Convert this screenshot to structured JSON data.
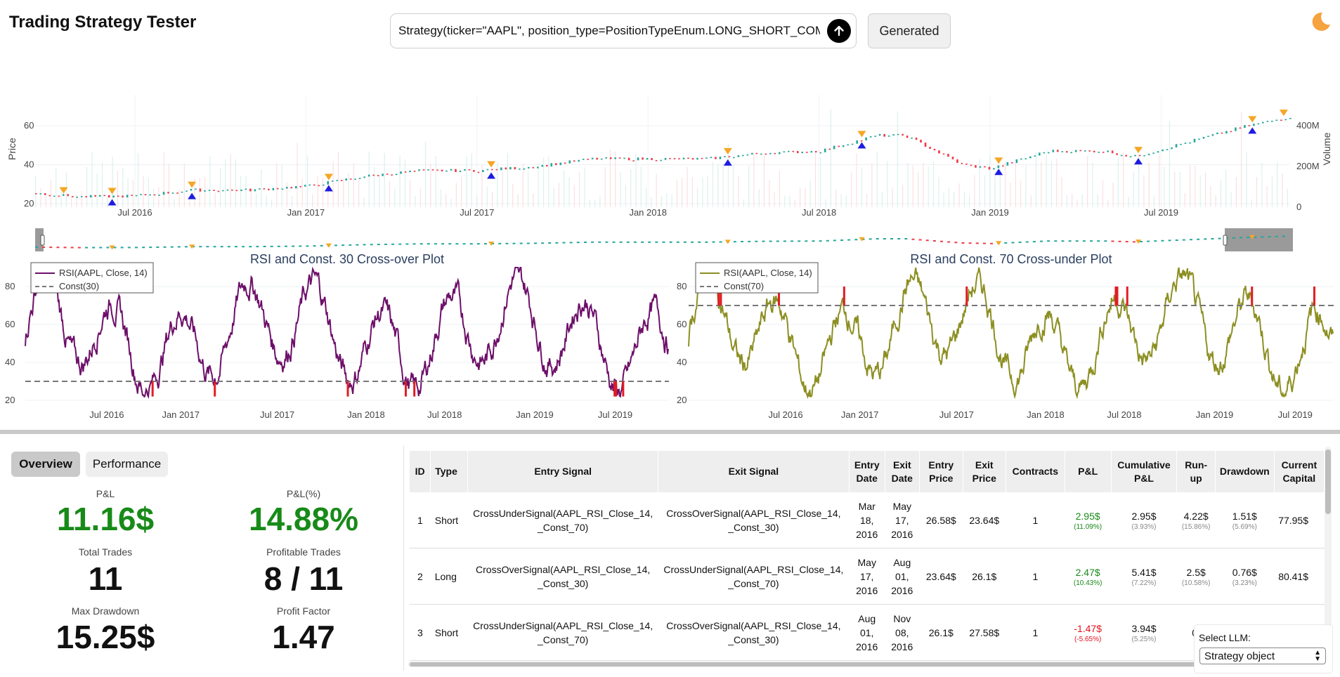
{
  "header": {
    "title": "Trading Strategy Tester",
    "prompt_value": "Strategy(ticker=\"AAPL\", position_type=PositionTypeEnum.LONG_SHORT_COMBINED",
    "generated_label": "Generated",
    "submit_icon": "arrow-up-icon",
    "theme_icon": "moon-icon"
  },
  "colors": {
    "up_candle": "#26a69a",
    "down_candle": "#ef3b48",
    "rsi_line_1": "#6d0f6a",
    "rsi_line_2": "#8c8f22",
    "signal_marker": "#e11d23",
    "entry_marker": "#f5a623",
    "exit_marker": "#1d1de0",
    "pnl_positive": "#188a18",
    "pnl_negative": "#e0141e"
  },
  "price_chart": {
    "y_label": "Price",
    "y2_label": "Volume",
    "y_ticks": [
      "20",
      "40",
      "60"
    ],
    "y2_ticks": [
      "0",
      "200M",
      "400M"
    ],
    "x_ticks": [
      "Jul 2016",
      "Jan 2017",
      "Jul 2017",
      "Jan 2018",
      "Jul 2018",
      "Jan 2019",
      "Jul 2019"
    ]
  },
  "chart_data": [
    {
      "type": "line",
      "title": "",
      "xlabel": "",
      "ylabel": "Price",
      "ylim": [
        20,
        70
      ],
      "x": [
        "2016-03",
        "2016-05",
        "2016-07",
        "2016-09",
        "2016-11",
        "2017-01",
        "2017-03",
        "2017-05",
        "2017-07",
        "2017-09",
        "2017-11",
        "2018-01",
        "2018-03",
        "2018-05",
        "2018-07",
        "2018-09",
        "2018-10",
        "2018-12",
        "2019-01",
        "2019-03",
        "2019-05",
        "2019-06",
        "2019-08",
        "2019-10",
        "2019-12"
      ],
      "series": [
        {
          "values": [
            26,
            23.5,
            24,
            27,
            27,
            29,
            34,
            37,
            37,
            39,
            43,
            43,
            43,
            46,
            47,
            55,
            55,
            40,
            38,
            47,
            47,
            44,
            52,
            60,
            66
          ]
        }
      ]
    },
    {
      "type": "line",
      "title": "RSI and Const. 30 Cross-over Plot",
      "ylim": [
        20,
        90
      ],
      "y_ticks": [
        "20",
        "40",
        "60",
        "80"
      ],
      "x_ticks": [
        "Jul 2016",
        "Jan 2017",
        "Jul 2017",
        "Jan 2018",
        "Jul 2018",
        "Jan 2019",
        "Jul 2019"
      ],
      "series": [
        {
          "name": "RSI(AAPL, Close, 14)"
        },
        {
          "name": "Const(30)",
          "values": [
            30
          ]
        }
      ]
    },
    {
      "type": "line",
      "title": "RSI and Const. 70 Cross-under Plot",
      "ylim": [
        20,
        90
      ],
      "y_ticks": [
        "20",
        "40",
        "60",
        "80"
      ],
      "x_ticks": [
        "Jul 2016",
        "Jan 2017",
        "Jul 2017",
        "Jan 2018",
        "Jul 2018",
        "Jan 2019",
        "Jul 2019"
      ],
      "series": [
        {
          "name": "RSI(AAPL, Close, 14)"
        },
        {
          "name": "Const(70)",
          "values": [
            70
          ]
        }
      ]
    }
  ],
  "tabs": [
    {
      "label": "Overview",
      "active": true
    },
    {
      "label": "Performance",
      "active": false
    }
  ],
  "stats": {
    "pnl": {
      "label": "P&L",
      "value": "11.16$"
    },
    "pnl_pct": {
      "label": "P&L(%)",
      "value": "14.88%"
    },
    "total_trades": {
      "label": "Total Trades",
      "value": "11"
    },
    "profitable_trades": {
      "label": "Profitable Trades",
      "value": "8 / 11"
    },
    "max_drawdown": {
      "label": "Max Drawdown",
      "value": "15.25$"
    },
    "profit_factor": {
      "label": "Profit Factor",
      "value": "1.47"
    }
  },
  "trades_table": {
    "columns": [
      "ID",
      "Type",
      "Entry Signal",
      "Exit Signal",
      "Entry Date",
      "Exit Date",
      "Entry Price",
      "Exit Price",
      "Contracts",
      "P&L",
      "Cumulative P&L",
      "Run-up",
      "Drawdown",
      "Current Capital"
    ],
    "rows": [
      {
        "id": "1",
        "type": "Short",
        "entry_signal": "CrossUnderSignal(AAPL_RSI_Close_14, _Const_70)",
        "exit_signal": "CrossOverSignal(AAPL_RSI_Close_14, _Const_30)",
        "entry_date": "Mar 18, 2016",
        "exit_date": "May 17, 2016",
        "entry_price": "26.58$",
        "exit_price": "23.64$",
        "contracts": "1",
        "pnl": "2.95$",
        "pnl_pct": "(11.09%)",
        "pnl_sign": "pos",
        "cum_pnl": "2.95$",
        "cum_pnl_pct": "(3.93%)",
        "runup": "4.22$",
        "runup_pct": "(15.86%)",
        "drawdown": "1.51$",
        "drawdown_pct": "(5.69%)",
        "capital": "77.95$"
      },
      {
        "id": "2",
        "type": "Long",
        "entry_signal": "CrossOverSignal(AAPL_RSI_Close_14, _Const_30)",
        "exit_signal": "CrossUnderSignal(AAPL_RSI_Close_14, _Const_70)",
        "entry_date": "May 17, 2016",
        "exit_date": "Aug 01, 2016",
        "entry_price": "23.64$",
        "exit_price": "26.1$",
        "contracts": "1",
        "pnl": "2.47$",
        "pnl_pct": "(10.43%)",
        "pnl_sign": "pos",
        "cum_pnl": "5.41$",
        "cum_pnl_pct": "(7.22%)",
        "runup": "2.5$",
        "runup_pct": "(10.58%)",
        "drawdown": "0.76$",
        "drawdown_pct": "(3.23%)",
        "capital": "80.41$"
      },
      {
        "id": "3",
        "type": "Short",
        "entry_signal": "CrossUnderSignal(AAPL_RSI_Close_14, _Const_70)",
        "exit_signal": "CrossOverSignal(AAPL_RSI_Close_14, _Const_30)",
        "entry_date": "Aug 01, 2016",
        "exit_date": "Nov 08, 2016",
        "entry_price": "26.1$",
        "exit_price": "27.58$",
        "contracts": "1",
        "pnl": "-1.47$",
        "pnl_pct": "(-5.65%)",
        "pnl_sign": "neg",
        "cum_pnl": "3.94$",
        "cum_pnl_pct": "(5.25%)",
        "runup": "0.",
        "runup_pct": "",
        "drawdown": "",
        "drawdown_pct": "",
        "capital": ""
      }
    ]
  },
  "llm_selector": {
    "label": "Select LLM:",
    "selected": "Strategy object"
  }
}
